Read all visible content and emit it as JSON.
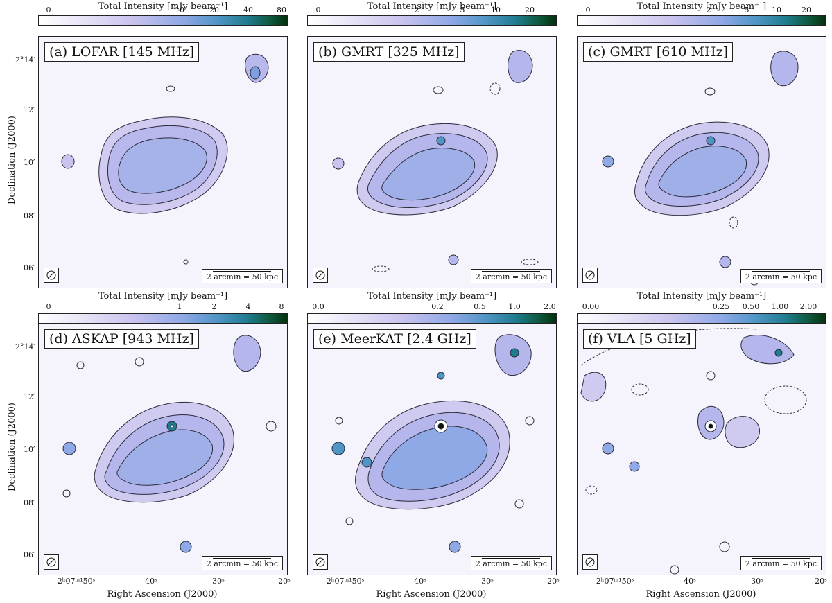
{
  "colorbar_title": "Total Intensity [mJy beam⁻¹]",
  "scale_text": "2 arcmin = 50 kpc",
  "axis": {
    "ylabel": "Declination (J2000)",
    "xlabel": "Right Ascension (J2000)",
    "yticks": [
      "2°14′",
      "12′",
      "10′",
      "08′",
      "06′"
    ],
    "xticks": [
      "2ʰ07ᵐ¹50ˢ",
      "40ˢ",
      "30ˢ",
      "20ˢ"
    ]
  },
  "panels": [
    {
      "label": "(a) LOFAR [145 MHz]",
      "cbar_ticks": [
        "0",
        "10",
        "20",
        "40",
        "80"
      ]
    },
    {
      "label": "(b) GMRT [325 MHz]",
      "cbar_ticks": [
        "0",
        "2",
        "5",
        "10",
        "20"
      ]
    },
    {
      "label": "(c) GMRT [610 MHz]",
      "cbar_ticks": [
        "0",
        "2",
        "5",
        "10",
        "20"
      ]
    },
    {
      "label": "(d) ASKAP [943 MHz]",
      "cbar_ticks": [
        "0",
        "1",
        "2",
        "4",
        "8"
      ]
    },
    {
      "label": "(e) MeerKAT [2.4 GHz]",
      "cbar_ticks": [
        "0.0",
        "0.2",
        "0.5",
        "1.0",
        "2.0"
      ]
    },
    {
      "label": "(f) VLA [5 GHz]",
      "cbar_ticks": [
        "0.00",
        "0.25",
        "0.50",
        "1.00",
        "2.00"
      ]
    }
  ],
  "colors": {
    "background": "#f5f3fc",
    "emission_low": "#c9c3ee",
    "emission_mid": "#8fa8e6",
    "emission_high": "#1f7c8e",
    "contour": "#2a2a3a"
  }
}
